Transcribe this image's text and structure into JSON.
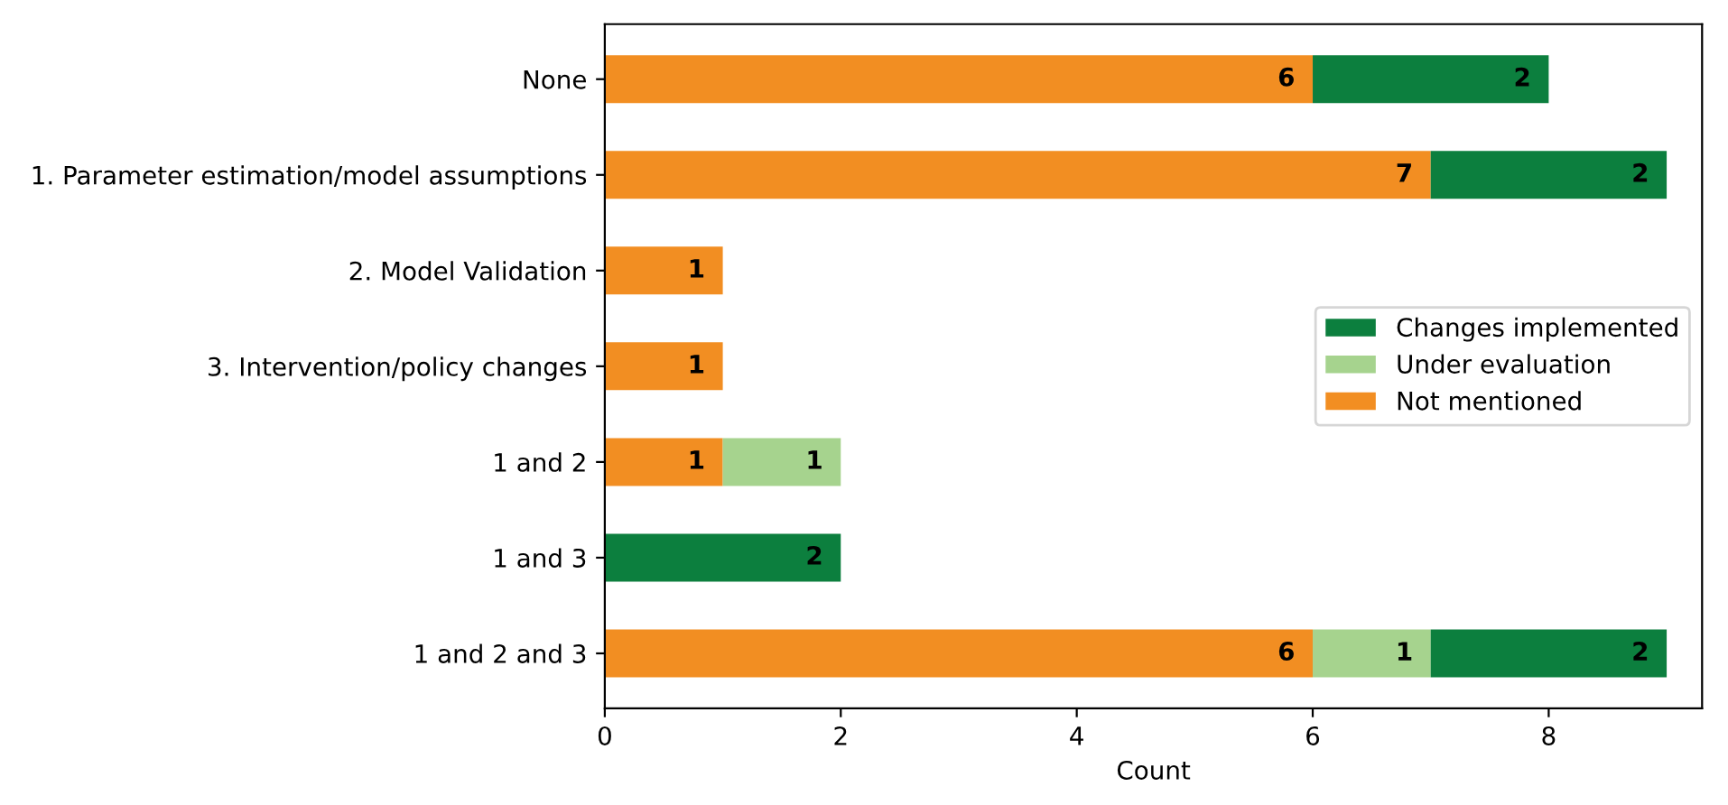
{
  "chart_data": {
    "type": "bar",
    "orientation": "horizontal",
    "stacked": true,
    "xlabel": "Count",
    "categories": [
      "None",
      "1. Parameter estimation/model assumptions",
      "2. Model Validation",
      "3. Intervention/policy changes",
      "1 and 2",
      "1 and 3",
      "1 and 2 and 3"
    ],
    "series": [
      {
        "name": "Not mentioned",
        "color": "#f28e22",
        "values": [
          6,
          7,
          1,
          1,
          1,
          0,
          6
        ],
        "value_labels": [
          "6",
          "7",
          "1",
          "1",
          "1",
          null,
          "6"
        ]
      },
      {
        "name": "Under evaluation",
        "color": "#a6d38e",
        "values": [
          0,
          0,
          0,
          0,
          1,
          0,
          1
        ],
        "value_labels": [
          null,
          null,
          null,
          null,
          "1",
          null,
          "1"
        ]
      },
      {
        "name": "Changes implemented",
        "color": "#0c7f3e",
        "values": [
          2,
          2,
          0,
          0,
          0,
          2,
          2
        ],
        "value_labels": [
          "2",
          "2",
          null,
          null,
          null,
          "2",
          "2"
        ]
      }
    ],
    "xlim": [
      0,
      9.3
    ],
    "xticks": [
      0,
      2,
      4,
      6,
      8
    ],
    "legend": "center right"
  }
}
